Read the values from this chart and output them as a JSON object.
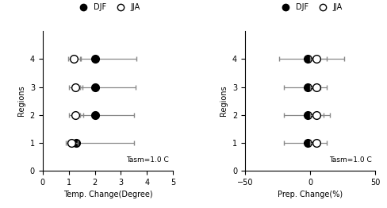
{
  "left": {
    "xlabel": "Temp. Change(Degree)",
    "ylabel": "Regions",
    "annotation": "Tasm=1.0 C",
    "xlim": [
      0,
      5
    ],
    "ylim": [
      0,
      5
    ],
    "yticks": [
      0,
      1,
      2,
      3,
      4
    ],
    "xticks": [
      0,
      1,
      2,
      3,
      4,
      5
    ],
    "djf": {
      "y": [
        1,
        2,
        3,
        4
      ],
      "x": [
        1.3,
        2.0,
        2.0,
        2.0
      ],
      "xerr_lo": [
        0.35,
        0.55,
        0.55,
        0.55
      ],
      "xerr_hi": [
        2.2,
        1.5,
        1.55,
        1.6
      ]
    },
    "jja": {
      "y": [
        1,
        2,
        3,
        4
      ],
      "x": [
        1.1,
        1.25,
        1.25,
        1.2
      ],
      "xerr_lo": [
        0.2,
        0.25,
        0.25,
        0.22
      ],
      "xerr_hi": [
        0.25,
        0.3,
        0.28,
        0.28
      ]
    }
  },
  "right": {
    "xlabel": "Prep. Change(%)",
    "ylabel": "Regions",
    "annotation": "Tasm=1.0 C",
    "xlim": [
      -50,
      50
    ],
    "ylim": [
      0,
      5
    ],
    "yticks": [
      0,
      1,
      2,
      3,
      4
    ],
    "xticks": [
      -50,
      0,
      50
    ],
    "djf": {
      "y": [
        1,
        2,
        3,
        4
      ],
      "x": [
        -2,
        -2,
        -2,
        -2
      ],
      "xerr_lo": [
        18,
        18,
        18,
        22
      ],
      "xerr_hi": [
        8,
        12,
        10,
        28
      ]
    },
    "jja": {
      "y": [
        1,
        2,
        3,
        4
      ],
      "x": [
        5,
        5,
        5,
        5
      ],
      "xerr_lo": [
        5,
        5,
        5,
        5
      ],
      "xerr_hi": [
        8,
        10,
        8,
        8
      ]
    }
  },
  "legend_labels": [
    "DJF",
    "JJA"
  ],
  "djf_color": "black",
  "jja_facecolor": "white",
  "djf_edge": "black",
  "jja_edge": "black",
  "marker_size": 7,
  "capsize": 2.5,
  "elinewidth": 0.9,
  "ecolor": "#888888"
}
